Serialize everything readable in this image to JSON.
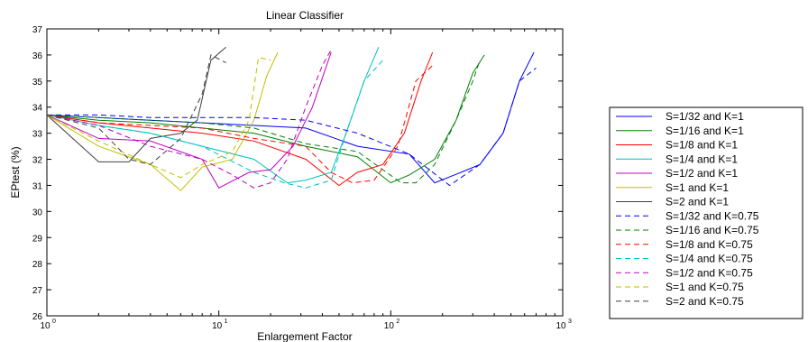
{
  "chart_data": {
    "type": "line",
    "title": "Linear Classifier",
    "xlabel": "Enlargement Factor",
    "ylabel": "EPtest (%)",
    "xscale": "log",
    "xlim": [
      1,
      1000
    ],
    "ylim": [
      26,
      37
    ],
    "x_ticks": [
      {
        "base": "10",
        "exp": "0"
      },
      {
        "base": "10",
        "exp": "1"
      },
      {
        "base": "10",
        "exp": "2"
      },
      {
        "base": "10",
        "exp": "3"
      }
    ],
    "y_ticks": [
      "26",
      "27",
      "28",
      "29",
      "30",
      "31",
      "32",
      "33",
      "34",
      "35",
      "36",
      "37"
    ],
    "legend_position": "outside-right",
    "series": [
      {
        "name": "S=1/32 and K=1",
        "color": "#0000ff",
        "style": "solid",
        "x": [
          1,
          2,
          4,
          8,
          16,
          32,
          64,
          128,
          180,
          256,
          330,
          450,
          560,
          680
        ],
        "y": [
          33.7,
          33.6,
          33.5,
          33.4,
          33.3,
          33.2,
          32.5,
          32.2,
          31.1,
          31.5,
          31.8,
          33.0,
          35.0,
          36.1
        ]
      },
      {
        "name": "S=1/16 and K=1",
        "color": "#008000",
        "style": "solid",
        "x": [
          1,
          2,
          4,
          8,
          16,
          32,
          64,
          100,
          128,
          180,
          240,
          300,
          350
        ],
        "y": [
          33.7,
          33.5,
          33.4,
          33.2,
          33.0,
          32.5,
          32.1,
          31.1,
          31.4,
          32.0,
          33.5,
          35.3,
          36.0
        ]
      },
      {
        "name": "S=1/8 and K=1",
        "color": "#ff0000",
        "style": "solid",
        "x": [
          1,
          2,
          4,
          8,
          16,
          32,
          50,
          64,
          90,
          120,
          150,
          175
        ],
        "y": [
          33.7,
          33.4,
          33.2,
          33.0,
          32.7,
          32.0,
          31.0,
          31.5,
          31.8,
          33.0,
          35.0,
          36.1
        ]
      },
      {
        "name": "S=1/4 and K=1",
        "color": "#00bfbf",
        "style": "solid",
        "x": [
          1,
          2,
          4,
          8,
          16,
          25,
          32,
          45,
          55,
          70,
          85
        ],
        "y": [
          33.7,
          33.3,
          33.0,
          32.5,
          32.0,
          31.1,
          31.2,
          31.5,
          33.0,
          35.0,
          36.3
        ]
      },
      {
        "name": "S=1/2 and K=1",
        "color": "#bf00bf",
        "style": "solid",
        "x": [
          1,
          2,
          4,
          8,
          10,
          15,
          20,
          27,
          35,
          45
        ],
        "y": [
          33.7,
          32.8,
          32.7,
          32.0,
          30.9,
          31.5,
          31.6,
          32.5,
          34.0,
          36.1
        ]
      },
      {
        "name": "S=1 and K=1",
        "color": "#bfbf00",
        "style": "solid",
        "x": [
          1,
          2,
          4,
          6,
          8,
          12,
          16,
          19,
          22
        ],
        "y": [
          33.7,
          32.5,
          31.8,
          30.8,
          31.7,
          32.0,
          33.5,
          35.2,
          36.1
        ]
      },
      {
        "name": "S=2 and K=1",
        "color": "#404040",
        "style": "solid",
        "x": [
          1,
          2,
          3,
          4,
          6,
          7.5,
          9,
          11
        ],
        "y": [
          33.7,
          31.9,
          31.9,
          32.8,
          33.0,
          33.5,
          35.8,
          36.3
        ]
      },
      {
        "name": "S=1/32 and K=0.75",
        "color": "#0000ff",
        "style": "dashed",
        "x": [
          1,
          2,
          4,
          8,
          16,
          32,
          64,
          128,
          220,
          256,
          330,
          450,
          560,
          700
        ],
        "y": [
          33.7,
          33.7,
          33.6,
          33.6,
          33.6,
          33.5,
          33.0,
          32.2,
          31.0,
          31.3,
          31.8,
          33.0,
          35.0,
          35.5
        ]
      },
      {
        "name": "S=1/16 and K=0.75",
        "color": "#008000",
        "style": "dashed",
        "x": [
          1,
          2,
          4,
          8,
          16,
          32,
          64,
          90,
          115,
          140,
          180,
          240,
          300,
          330
        ],
        "y": [
          33.7,
          33.6,
          33.5,
          33.4,
          33.2,
          32.6,
          32.3,
          31.6,
          31.1,
          31.1,
          31.8,
          33.5,
          35.0,
          35.8
        ]
      },
      {
        "name": "S=1/8 and K=0.75",
        "color": "#ff0000",
        "style": "dashed",
        "x": [
          1,
          2,
          4,
          8,
          16,
          32,
          45,
          60,
          80,
          110,
          140,
          175
        ],
        "y": [
          33.7,
          33.4,
          33.3,
          33.2,
          32.8,
          32.5,
          31.5,
          31.1,
          31.2,
          32.5,
          35.0,
          35.6
        ]
      },
      {
        "name": "S=1/4 and K=0.75",
        "color": "#00bfbf",
        "style": "dashed",
        "x": [
          1,
          2,
          4,
          8,
          16,
          24,
          32,
          45,
          55,
          70,
          90
        ],
        "y": [
          33.7,
          33.3,
          33.0,
          32.5,
          31.5,
          31.1,
          30.9,
          31.2,
          33.0,
          35.0,
          35.8
        ]
      },
      {
        "name": "S=1/2 and K=0.75",
        "color": "#bf00bf",
        "style": "dashed",
        "x": [
          1,
          2,
          4,
          8,
          12,
          16,
          20,
          25,
          32,
          40,
          45
        ],
        "y": [
          33.7,
          33.3,
          32.5,
          32.0,
          31.4,
          30.9,
          31.1,
          32.0,
          34.0,
          35.6,
          36.2
        ]
      },
      {
        "name": "S=1 and K=0.75",
        "color": "#bfbf00",
        "style": "dashed",
        "x": [
          1,
          2,
          4,
          6,
          8,
          12,
          15,
          17,
          20
        ],
        "y": [
          33.7,
          32.7,
          31.8,
          31.3,
          31.8,
          32.3,
          33.5,
          35.9,
          35.8
        ]
      },
      {
        "name": "S=2 and K=0.75",
        "color": "#404040",
        "style": "dashed",
        "x": [
          1,
          2,
          3,
          4,
          6,
          8,
          9,
          11
        ],
        "y": [
          33.7,
          33.2,
          32.0,
          31.8,
          32.8,
          34.5,
          36.0,
          35.7
        ]
      }
    ]
  }
}
